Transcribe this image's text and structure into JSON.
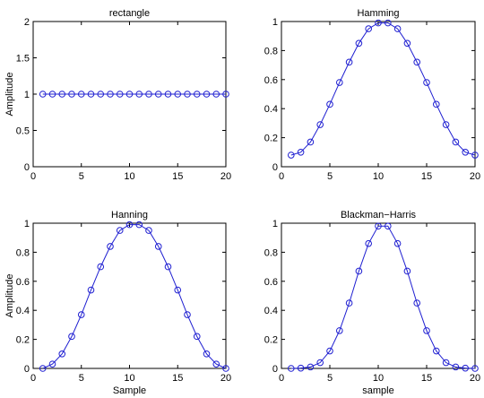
{
  "chart_data": [
    {
      "type": "line",
      "title": "rectangle",
      "xlabel": "",
      "ylabel": "Amplitude",
      "xlim": [
        0,
        20
      ],
      "ylim": [
        0,
        2
      ],
      "xticks": [
        "0",
        "5",
        "10",
        "15",
        "20"
      ],
      "yticks": [
        "0",
        "0.5",
        "1",
        "1.5",
        "2"
      ],
      "x": [
        1,
        2,
        3,
        4,
        5,
        6,
        7,
        8,
        9,
        10,
        11,
        12,
        13,
        14,
        15,
        16,
        17,
        18,
        19,
        20
      ],
      "values": [
        1,
        1,
        1,
        1,
        1,
        1,
        1,
        1,
        1,
        1,
        1,
        1,
        1,
        1,
        1,
        1,
        1,
        1,
        1,
        1
      ],
      "marker": "circle",
      "grid": false
    },
    {
      "type": "line",
      "title": "Hamming",
      "xlabel": "",
      "ylabel": "",
      "xlim": [
        0,
        20
      ],
      "ylim": [
        0,
        1
      ],
      "xticks": [
        "0",
        "5",
        "10",
        "15",
        "20"
      ],
      "yticks": [
        "0",
        "0.2",
        "0.4",
        "0.6",
        "0.8",
        "1"
      ],
      "x": [
        1,
        2,
        3,
        4,
        5,
        6,
        7,
        8,
        9,
        10,
        11,
        12,
        13,
        14,
        15,
        16,
        17,
        18,
        19,
        20
      ],
      "values": [
        0.08,
        0.1,
        0.17,
        0.29,
        0.43,
        0.58,
        0.72,
        0.85,
        0.95,
        0.99,
        0.99,
        0.95,
        0.85,
        0.72,
        0.58,
        0.43,
        0.29,
        0.17,
        0.1,
        0.08
      ],
      "marker": "circle",
      "grid": false
    },
    {
      "type": "line",
      "title": "Hanning",
      "xlabel": "Sample",
      "ylabel": "Amplitude",
      "xlim": [
        0,
        20
      ],
      "ylim": [
        0,
        1
      ],
      "xticks": [
        "0",
        "5",
        "10",
        "15",
        "20"
      ],
      "yticks": [
        "0",
        "0.2",
        "0.4",
        "0.6",
        "0.8",
        "1"
      ],
      "x": [
        1,
        2,
        3,
        4,
        5,
        6,
        7,
        8,
        9,
        10,
        11,
        12,
        13,
        14,
        15,
        16,
        17,
        18,
        19,
        20
      ],
      "values": [
        0,
        0.03,
        0.1,
        0.22,
        0.37,
        0.54,
        0.7,
        0.84,
        0.95,
        0.99,
        0.99,
        0.95,
        0.84,
        0.7,
        0.54,
        0.37,
        0.22,
        0.1,
        0.03,
        0
      ],
      "marker": "circle",
      "grid": false
    },
    {
      "type": "line",
      "title": "Blackman−Harris",
      "xlabel": "sample",
      "ylabel": "",
      "xlim": [
        0,
        20
      ],
      "ylim": [
        0,
        1
      ],
      "xticks": [
        "0",
        "5",
        "10",
        "15",
        "20"
      ],
      "yticks": [
        "0",
        "0.2",
        "0.4",
        "0.6",
        "0.8",
        "1"
      ],
      "x": [
        1,
        2,
        3,
        4,
        5,
        6,
        7,
        8,
        9,
        10,
        11,
        12,
        13,
        14,
        15,
        16,
        17,
        18,
        19,
        20
      ],
      "values": [
        0,
        0.002,
        0.01,
        0.04,
        0.12,
        0.26,
        0.45,
        0.67,
        0.86,
        0.98,
        0.98,
        0.86,
        0.67,
        0.45,
        0.26,
        0.12,
        0.04,
        0.01,
        0.002,
        0
      ],
      "marker": "circle",
      "grid": false
    }
  ],
  "colors": {
    "series": "#1f1fd1",
    "axes": "#000000",
    "background": "#ffffff"
  }
}
